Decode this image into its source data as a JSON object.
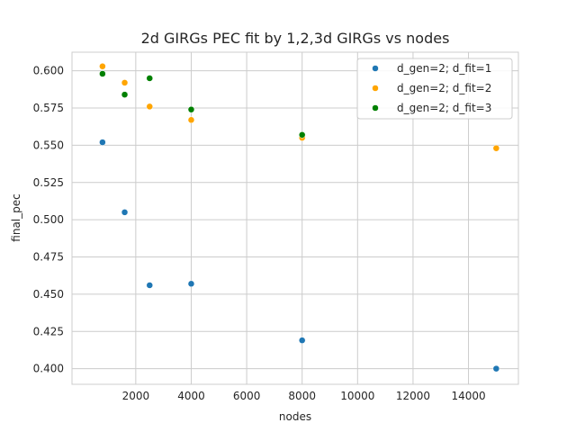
{
  "chart_data": {
    "type": "scatter",
    "title": "2d GIRGs PEC fit by 1,2,3d GIRGs vs nodes",
    "xlabel": "nodes",
    "ylabel": "final_pec",
    "xlim": [
      -300,
      15800
    ],
    "ylim": [
      0.3895,
      0.6125
    ],
    "xticks": [
      2000,
      4000,
      6000,
      8000,
      10000,
      12000,
      14000
    ],
    "yticks": [
      0.4,
      0.425,
      0.45,
      0.475,
      0.5,
      0.525,
      0.55,
      0.575,
      0.6
    ],
    "grid": true,
    "legend_position": "upper right",
    "series": [
      {
        "name": "d_gen=2; d_fit=1",
        "color": "#1f77b4",
        "x": [
          800,
          1600,
          2500,
          4000,
          8000,
          15000
        ],
        "y": [
          0.552,
          0.505,
          0.456,
          0.457,
          0.419,
          0.4
        ]
      },
      {
        "name": "d_gen=2; d_fit=2",
        "color": "#ffa500",
        "x": [
          800,
          1600,
          2500,
          4000,
          8000,
          15000
        ],
        "y": [
          0.603,
          0.592,
          0.576,
          0.567,
          0.555,
          0.548
        ]
      },
      {
        "name": "d_gen=2; d_fit=3",
        "color": "#008000",
        "x": [
          800,
          1600,
          2500,
          4000,
          8000
        ],
        "y": [
          0.598,
          0.584,
          0.595,
          0.574,
          0.557
        ]
      }
    ]
  }
}
